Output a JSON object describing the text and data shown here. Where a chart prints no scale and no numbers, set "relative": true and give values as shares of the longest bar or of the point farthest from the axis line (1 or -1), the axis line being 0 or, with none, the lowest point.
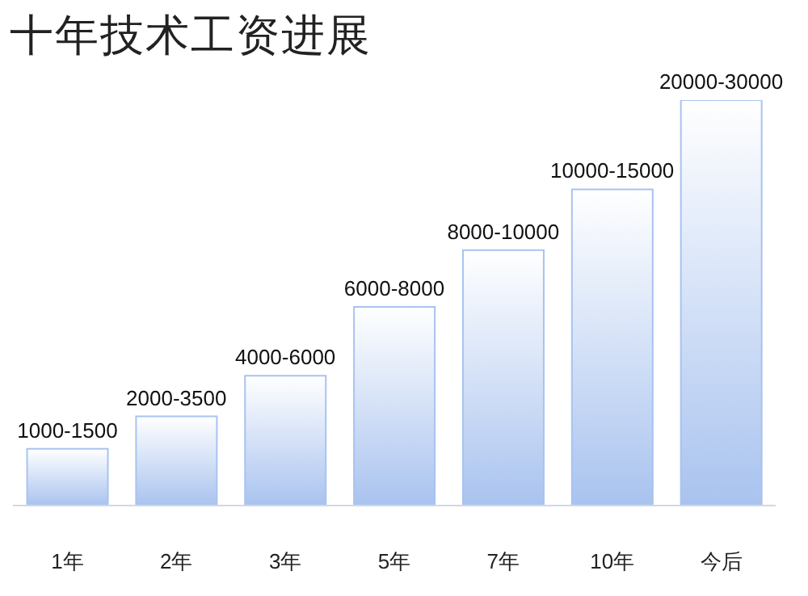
{
  "chart_data": {
    "type": "bar",
    "title": "十年技术工资进展",
    "categories": [
      "1年",
      "2年",
      "3年",
      "5年",
      "7年",
      "10年",
      "今后"
    ],
    "values": [
      0.14,
      0.22,
      0.32,
      0.49,
      0.63,
      0.78,
      1
    ],
    "annotations": [
      {
        "text": "1000-1500",
        "x": "1年",
        "y": 0.14
      },
      {
        "text": "2000-3500",
        "x": "2年",
        "y": 0.22
      },
      {
        "text": "4000-6000",
        "x": "3年",
        "y": 0.32
      },
      {
        "text": "6000-8000",
        "x": "5年",
        "y": 0.49
      },
      {
        "text": "8000-10000",
        "x": "7年",
        "y": 0.63
      },
      {
        "text": "10000-15000",
        "x": "10年",
        "y": 0.78
      },
      {
        "text": "20000-30000",
        "x": "今后",
        "y": 1
      }
    ],
    "relative": true,
    "color": "#a9c3ef",
    "grid": false,
    "legend": false
  }
}
